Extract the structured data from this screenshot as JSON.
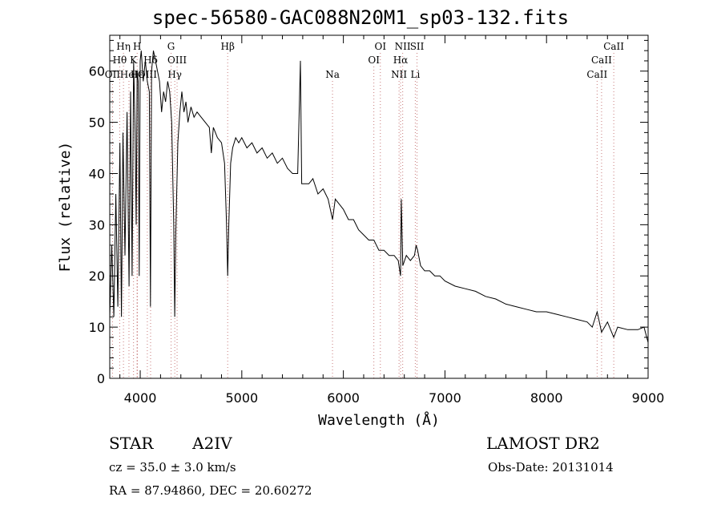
{
  "chart_data": {
    "type": "line",
    "title": "spec-56580-GAC088N20M1_sp03-132.fits",
    "xlabel": "Wavelength (Å)",
    "ylabel": "Flux (relative)",
    "xlim": [
      3700,
      9000
    ],
    "ylim": [
      0,
      67
    ],
    "xticks": [
      4000,
      5000,
      6000,
      7000,
      8000,
      9000
    ],
    "yticks": [
      0,
      10,
      20,
      30,
      40,
      50,
      60
    ],
    "grid": false,
    "series": [
      {
        "points": [
          [
            3700,
            12
          ],
          [
            3720,
            26
          ],
          [
            3740,
            12
          ],
          [
            3760,
            36
          ],
          [
            3780,
            14
          ],
          [
            3800,
            46
          ],
          [
            3815,
            12
          ],
          [
            3830,
            48
          ],
          [
            3850,
            24
          ],
          [
            3870,
            52
          ],
          [
            3890,
            18
          ],
          [
            3905,
            56
          ],
          [
            3920,
            20
          ],
          [
            3935,
            62
          ],
          [
            3950,
            48
          ],
          [
            3960,
            30
          ],
          [
            3970,
            60
          ],
          [
            3980,
            58
          ],
          [
            3990,
            20
          ],
          [
            4000,
            62
          ],
          [
            4010,
            64
          ],
          [
            4030,
            58
          ],
          [
            4050,
            62
          ],
          [
            4070,
            58
          ],
          [
            4090,
            56
          ],
          [
            4101,
            14
          ],
          [
            4112,
            60
          ],
          [
            4130,
            64
          ],
          [
            4150,
            62
          ],
          [
            4170,
            60
          ],
          [
            4190,
            58
          ],
          [
            4210,
            52
          ],
          [
            4230,
            56
          ],
          [
            4250,
            54
          ],
          [
            4270,
            58
          ],
          [
            4290,
            56
          ],
          [
            4310,
            50
          ],
          [
            4330,
            30
          ],
          [
            4340,
            12
          ],
          [
            4350,
            28
          ],
          [
            4370,
            46
          ],
          [
            4390,
            52
          ],
          [
            4410,
            56
          ],
          [
            4430,
            52
          ],
          [
            4450,
            54
          ],
          [
            4470,
            50
          ],
          [
            4500,
            53
          ],
          [
            4530,
            51
          ],
          [
            4560,
            52
          ],
          [
            4600,
            51
          ],
          [
            4640,
            50
          ],
          [
            4680,
            49
          ],
          [
            4700,
            44
          ],
          [
            4720,
            49
          ],
          [
            4740,
            48
          ],
          [
            4760,
            47
          ],
          [
            4800,
            46
          ],
          [
            4830,
            42
          ],
          [
            4850,
            30
          ],
          [
            4861,
            20
          ],
          [
            4872,
            30
          ],
          [
            4890,
            42
          ],
          [
            4910,
            45
          ],
          [
            4940,
            47
          ],
          [
            4970,
            46
          ],
          [
            5000,
            47
          ],
          [
            5050,
            45
          ],
          [
            5100,
            46
          ],
          [
            5150,
            44
          ],
          [
            5200,
            45
          ],
          [
            5250,
            43
          ],
          [
            5300,
            44
          ],
          [
            5350,
            42
          ],
          [
            5400,
            43
          ],
          [
            5450,
            41
          ],
          [
            5500,
            40
          ],
          [
            5550,
            40
          ],
          [
            5577,
            62
          ],
          [
            5590,
            38
          ],
          [
            5620,
            38
          ],
          [
            5660,
            38
          ],
          [
            5700,
            39
          ],
          [
            5750,
            36
          ],
          [
            5800,
            37
          ],
          [
            5850,
            35
          ],
          [
            5893,
            31
          ],
          [
            5920,
            35
          ],
          [
            5960,
            34
          ],
          [
            6000,
            33
          ],
          [
            6050,
            31
          ],
          [
            6100,
            31
          ],
          [
            6150,
            29
          ],
          [
            6200,
            28
          ],
          [
            6250,
            27
          ],
          [
            6300,
            27
          ],
          [
            6350,
            25
          ],
          [
            6400,
            25
          ],
          [
            6450,
            24
          ],
          [
            6500,
            24
          ],
          [
            6540,
            23
          ],
          [
            6563,
            20
          ],
          [
            6570,
            35
          ],
          [
            6585,
            22
          ],
          [
            6620,
            24
          ],
          [
            6660,
            23
          ],
          [
            6700,
            24
          ],
          [
            6716,
            26
          ],
          [
            6731,
            25
          ],
          [
            6760,
            22
          ],
          [
            6800,
            21
          ],
          [
            6850,
            21
          ],
          [
            6900,
            20
          ],
          [
            6950,
            20
          ],
          [
            7000,
            19
          ],
          [
            7100,
            18
          ],
          [
            7200,
            17.5
          ],
          [
            7300,
            17
          ],
          [
            7400,
            16
          ],
          [
            7500,
            15.5
          ],
          [
            7600,
            14.5
          ],
          [
            7700,
            14
          ],
          [
            7800,
            13.5
          ],
          [
            7900,
            13
          ],
          [
            8000,
            13
          ],
          [
            8100,
            12.5
          ],
          [
            8200,
            12
          ],
          [
            8300,
            11.5
          ],
          [
            8400,
            11
          ],
          [
            8450,
            10
          ],
          [
            8498,
            13
          ],
          [
            8542,
            9
          ],
          [
            8600,
            11
          ],
          [
            8662,
            8
          ],
          [
            8700,
            10
          ],
          [
            8800,
            9.5
          ],
          [
            8900,
            9.5
          ],
          [
            8960,
            10
          ],
          [
            9000,
            7
          ]
        ]
      }
    ],
    "annotations": [
      {
        "label": "Hη",
        "x": 3835,
        "row": 1
      },
      {
        "label": "H",
        "x": 3970,
        "row": 1
      },
      {
        "label": "G",
        "x": 4304,
        "row": 1
      },
      {
        "label": "Hβ",
        "x": 4861,
        "row": 1
      },
      {
        "label": "OI",
        "x": 6364,
        "row": 1
      },
      {
        "label": "NII",
        "x": 6584,
        "row": 1
      },
      {
        "label": "SII",
        "x": 6725,
        "row": 1
      },
      {
        "label": "CaII",
        "x": 8662,
        "row": 1
      },
      {
        "label": "Hθ",
        "x": 3798,
        "row": 2
      },
      {
        "label": "K",
        "x": 3934,
        "row": 2
      },
      {
        "label": "Hδ",
        "x": 4102,
        "row": 2
      },
      {
        "label": "OIII",
        "x": 4363,
        "row": 2
      },
      {
        "label": "OI",
        "x": 6300,
        "row": 2
      },
      {
        "label": "Hα",
        "x": 6563,
        "row": 2
      },
      {
        "label": "CaII",
        "x": 8542,
        "row": 2
      },
      {
        "label": "OII",
        "x": 3727,
        "row": 3
      },
      {
        "label": "HeI",
        "x": 3889,
        "row": 3
      },
      {
        "label": "Hε",
        "x": 3970,
        "row": 3
      },
      {
        "label": "OIII",
        "x": 4070,
        "row": 3
      },
      {
        "label": "Hγ",
        "x": 4340,
        "row": 3
      },
      {
        "label": "Na",
        "x": 5893,
        "row": 3
      },
      {
        "label": "NII",
        "x": 6548,
        "row": 3
      },
      {
        "label": "Li",
        "x": 6708,
        "row": 3
      },
      {
        "label": "CaII",
        "x": 8498,
        "row": 3
      }
    ]
  },
  "info": {
    "class": "STAR",
    "subclass": "A2IV",
    "survey": "LAMOST DR2",
    "cz": "cz = 35.0 ± 3.0 km/s",
    "obs_date": "Obs-Date: 20131014",
    "radec": "RA =  87.94860, DEC =  20.60272"
  }
}
